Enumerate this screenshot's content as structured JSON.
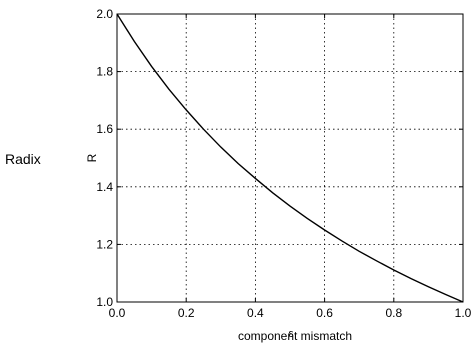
{
  "chart_data": {
    "type": "line",
    "side_label": "Radix",
    "ylabel": "R",
    "xlabel": "component mismatch",
    "xlabel_overlay": "ε",
    "xlim": [
      0,
      1
    ],
    "ylim": [
      1,
      2
    ],
    "x_ticks": [
      "0.0",
      "0.2",
      "0.4",
      "0.6",
      "0.8",
      "1.0"
    ],
    "y_ticks": [
      "1.0",
      "1.2",
      "1.4",
      "1.6",
      "1.8",
      "2.0"
    ],
    "grid": true,
    "series": [
      {
        "color": "#000000",
        "x": [
          0.0,
          0.05,
          0.1,
          0.15,
          0.2,
          0.25,
          0.3,
          0.35,
          0.4,
          0.45,
          0.5,
          0.55,
          0.6,
          0.65,
          0.7,
          0.75,
          0.8,
          0.85,
          0.9,
          0.95,
          1.0
        ],
        "y": [
          2.0,
          1.905,
          1.818,
          1.739,
          1.667,
          1.6,
          1.538,
          1.481,
          1.429,
          1.379,
          1.333,
          1.29,
          1.25,
          1.212,
          1.176,
          1.143,
          1.111,
          1.081,
          1.053,
          1.026,
          1.0
        ]
      }
    ]
  }
}
